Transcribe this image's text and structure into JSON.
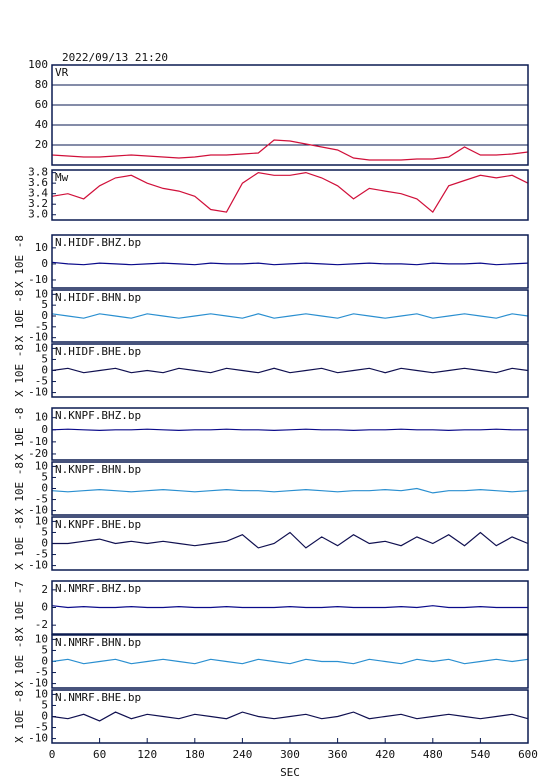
{
  "chart_data": [
    {
      "type": "line",
      "title": "2022/09/13 21:20",
      "name": "VR",
      "color": "#d0103a",
      "grid": true,
      "xlim": [
        0,
        600
      ],
      "ylim": [
        0,
        100
      ],
      "yticks": [
        20,
        40,
        60,
        80,
        100
      ],
      "x": [
        0,
        20,
        40,
        60,
        80,
        100,
        120,
        140,
        160,
        180,
        200,
        220,
        240,
        260,
        280,
        300,
        320,
        340,
        360,
        380,
        400,
        420,
        440,
        460,
        480,
        500,
        520,
        540,
        560,
        580,
        600
      ],
      "values": [
        10,
        9,
        8,
        8,
        9,
        10,
        9,
        8,
        7,
        8,
        10,
        10,
        11,
        12,
        25,
        24,
        21,
        18,
        15,
        7,
        5,
        5,
        5,
        6,
        6,
        8,
        18,
        10,
        10,
        11,
        13
      ]
    },
    {
      "type": "line",
      "name": "Mw",
      "color": "#d0103a",
      "grid": false,
      "xlim": [
        0,
        600
      ],
      "ylim": [
        2.9,
        3.85
      ],
      "yticks": [
        {
          "value": 3,
          "label": "3.0"
        },
        3.2,
        3.4,
        3.6,
        3.8
      ],
      "x": [
        0,
        20,
        40,
        60,
        80,
        100,
        120,
        140,
        160,
        180,
        200,
        220,
        240,
        260,
        280,
        300,
        320,
        340,
        360,
        380,
        400,
        420,
        440,
        460,
        480,
        500,
        520,
        540,
        560,
        580,
        600
      ],
      "values": [
        3.35,
        3.4,
        3.3,
        3.55,
        3.7,
        3.75,
        3.6,
        3.5,
        3.45,
        3.35,
        3.1,
        3.05,
        3.6,
        3.8,
        3.75,
        3.75,
        3.8,
        3.7,
        3.55,
        3.3,
        3.5,
        3.45,
        3.4,
        3.3,
        3.05,
        3.55,
        3.65,
        3.75,
        3.7,
        3.75,
        3.6
      ]
    },
    {
      "type": "line",
      "name": "N.HIDF.BHZ.bp",
      "ylabel": "X 10E -8",
      "color": "#0a0a8a",
      "grid": false,
      "xlim": [
        0,
        600
      ],
      "ylim": [
        -15,
        18
      ],
      "yticks": [
        -10,
        0,
        10
      ],
      "x": [
        0,
        20,
        40,
        60,
        80,
        100,
        120,
        140,
        160,
        180,
        200,
        220,
        240,
        260,
        280,
        300,
        320,
        340,
        360,
        380,
        400,
        420,
        440,
        460,
        480,
        500,
        520,
        540,
        560,
        580,
        600
      ],
      "values": [
        1,
        0,
        -0.5,
        0.5,
        0,
        -0.5,
        0,
        0.5,
        0,
        -0.5,
        0.5,
        0,
        0,
        0.5,
        -0.5,
        0,
        0.5,
        0,
        -0.5,
        0,
        0.5,
        0,
        0,
        -0.5,
        0.5,
        0,
        0,
        0.5,
        -0.5,
        0,
        0.5
      ]
    },
    {
      "type": "line",
      "name": "N.HIDF.BHN.bp",
      "ylabel": "X 10E -8",
      "color": "#2a8fd0",
      "grid": false,
      "xlim": [
        0,
        600
      ],
      "ylim": [
        -12,
        12
      ],
      "yticks": [
        -10,
        -5,
        0,
        5,
        10
      ],
      "x": [
        0,
        20,
        40,
        60,
        80,
        100,
        120,
        140,
        160,
        180,
        200,
        220,
        240,
        260,
        280,
        300,
        320,
        340,
        360,
        380,
        400,
        420,
        440,
        460,
        480,
        500,
        520,
        540,
        560,
        580,
        600
      ],
      "values": [
        1,
        0,
        -1,
        1,
        0,
        -1,
        1,
        0,
        -1,
        0,
        1,
        0,
        -1,
        1,
        -1,
        0,
        1,
        0,
        -1,
        1,
        0,
        -1,
        0,
        1,
        -1,
        0,
        1,
        0,
        -1,
        1,
        0
      ]
    },
    {
      "type": "line",
      "name": "N.HIDF.BHE.bp",
      "ylabel": "X 10E -8",
      "color": "#101050",
      "grid": false,
      "xlim": [
        0,
        600
      ],
      "ylim": [
        -12,
        12
      ],
      "yticks": [
        -10,
        -5,
        0,
        5,
        10
      ],
      "x": [
        0,
        20,
        40,
        60,
        80,
        100,
        120,
        140,
        160,
        180,
        200,
        220,
        240,
        260,
        280,
        300,
        320,
        340,
        360,
        380,
        400,
        420,
        440,
        460,
        480,
        500,
        520,
        540,
        560,
        580,
        600
      ],
      "values": [
        0,
        1,
        -1,
        0,
        1,
        -1,
        0,
        -1,
        1,
        0,
        -1,
        1,
        0,
        -1,
        1,
        -1,
        0,
        1,
        -1,
        0,
        1,
        -1,
        1,
        0,
        -1,
        0,
        1,
        0,
        -1,
        1,
        0
      ]
    },
    {
      "type": "line",
      "name": "N.KNPF.BHZ.bp",
      "ylabel": "X 10E -8",
      "color": "#0a0a8a",
      "grid": false,
      "xlim": [
        0,
        600
      ],
      "ylim": [
        -25,
        18
      ],
      "yticks": [
        -20,
        -10,
        0,
        10
      ],
      "x": [
        0,
        20,
        40,
        60,
        80,
        100,
        120,
        140,
        160,
        180,
        200,
        220,
        240,
        260,
        280,
        300,
        320,
        340,
        360,
        380,
        400,
        420,
        440,
        460,
        480,
        500,
        520,
        540,
        560,
        580,
        600
      ],
      "values": [
        0,
        0.5,
        0,
        -0.5,
        0,
        0,
        0.5,
        0,
        -0.5,
        0,
        0,
        0.5,
        0,
        0,
        -0.5,
        0,
        0.5,
        0,
        0,
        -0.5,
        0,
        0,
        0.5,
        0,
        0,
        -0.5,
        0,
        0,
        0.5,
        0,
        0
      ]
    },
    {
      "type": "line",
      "name": "N.KNPF.BHN.bp",
      "ylabel": "X 10E -8",
      "color": "#2a8fd0",
      "grid": false,
      "xlim": [
        0,
        600
      ],
      "ylim": [
        -12,
        12
      ],
      "yticks": [
        -10,
        -5,
        0,
        5,
        10
      ],
      "x": [
        0,
        20,
        40,
        60,
        80,
        100,
        120,
        140,
        160,
        180,
        200,
        220,
        240,
        260,
        280,
        300,
        320,
        340,
        360,
        380,
        400,
        420,
        440,
        460,
        480,
        500,
        520,
        540,
        560,
        580,
        600
      ],
      "values": [
        -1,
        -1.5,
        -1,
        -0.5,
        -1,
        -1.5,
        -1,
        -0.5,
        -1,
        -1.5,
        -1,
        -0.5,
        -1,
        -1,
        -1.5,
        -1,
        -0.5,
        -1,
        -1.5,
        -1,
        -1,
        -0.5,
        -1,
        0,
        -2,
        -1,
        -1,
        -0.5,
        -1,
        -1.5,
        -1
      ]
    },
    {
      "type": "line",
      "name": "N.KNPF.BHE.bp",
      "ylabel": "X 10E -8",
      "color": "#101050",
      "grid": false,
      "xlim": [
        0,
        600
      ],
      "ylim": [
        -12,
        12
      ],
      "yticks": [
        -10,
        -5,
        0,
        5,
        10
      ],
      "x": [
        0,
        20,
        40,
        60,
        80,
        100,
        120,
        140,
        160,
        180,
        200,
        220,
        240,
        260,
        280,
        300,
        320,
        340,
        360,
        380,
        400,
        420,
        440,
        460,
        480,
        500,
        520,
        540,
        560,
        580,
        600
      ],
      "values": [
        0,
        0,
        1,
        2,
        0,
        1,
        0,
        1,
        0,
        -1,
        0,
        1,
        4,
        -2,
        0,
        5,
        -2,
        3,
        -1,
        4,
        0,
        1,
        -1,
        3,
        0,
        4,
        -1,
        5,
        -1,
        3,
        0
      ]
    },
    {
      "type": "line",
      "name": "N.NMRF.BHZ.bp",
      "ylabel": "X 10E -7",
      "color": "#0a0a8a",
      "grid": false,
      "xlim": [
        0,
        600
      ],
      "ylim": [
        -3,
        3
      ],
      "yticks": [
        -2,
        0,
        2
      ],
      "x": [
        0,
        20,
        40,
        60,
        80,
        100,
        120,
        140,
        160,
        180,
        200,
        220,
        240,
        260,
        280,
        300,
        320,
        340,
        360,
        380,
        400,
        420,
        440,
        460,
        480,
        500,
        520,
        540,
        560,
        580,
        600
      ],
      "values": [
        0.2,
        0,
        0.1,
        0,
        0,
        0.1,
        0,
        0,
        0.1,
        0,
        0,
        0.1,
        0,
        0,
        0,
        0.1,
        0,
        0,
        0.1,
        0,
        0,
        0,
        0.1,
        0,
        0.2,
        0,
        0,
        0.1,
        0,
        0,
        0
      ]
    },
    {
      "type": "line",
      "name": "N.NMRF.BHN.bp",
      "ylabel": "X 10E -8",
      "color": "#2a8fd0",
      "grid": false,
      "xlim": [
        0,
        600
      ],
      "ylim": [
        -12,
        12
      ],
      "yticks": [
        -10,
        -5,
        0,
        5,
        10
      ],
      "x": [
        0,
        20,
        40,
        60,
        80,
        100,
        120,
        140,
        160,
        180,
        200,
        220,
        240,
        260,
        280,
        300,
        320,
        340,
        360,
        380,
        400,
        420,
        440,
        460,
        480,
        500,
        520,
        540,
        560,
        580,
        600
      ],
      "values": [
        0,
        1,
        -1,
        0,
        1,
        -1,
        0,
        1,
        0,
        -1,
        1,
        0,
        -1,
        1,
        0,
        -1,
        1,
        0,
        0,
        -1,
        1,
        0,
        -1,
        1,
        0,
        1,
        -1,
        0,
        1,
        0,
        1
      ]
    },
    {
      "type": "line",
      "name": "N.NMRF.BHE.bp",
      "ylabel": "X 10E -8",
      "color": "#101050",
      "grid": false,
      "xlim": [
        0,
        600
      ],
      "ylim": [
        -12,
        12
      ],
      "yticks": [
        -10,
        -5,
        0,
        5,
        10
      ],
      "xlabel": "SEC",
      "xticks": [
        0,
        60,
        120,
        180,
        240,
        300,
        360,
        420,
        480,
        540,
        600
      ],
      "x": [
        0,
        20,
        40,
        60,
        80,
        100,
        120,
        140,
        160,
        180,
        200,
        220,
        240,
        260,
        280,
        300,
        320,
        340,
        360,
        380,
        400,
        420,
        440,
        460,
        480,
        500,
        520,
        540,
        560,
        580,
        600
      ],
      "values": [
        0,
        -1,
        1,
        -2,
        2,
        -1,
        1,
        0,
        -1,
        1,
        0,
        -1,
        2,
        0,
        -1,
        0,
        1,
        -1,
        0,
        2,
        -1,
        0,
        1,
        -1,
        0,
        1,
        0,
        -1,
        0,
        1,
        -1
      ]
    }
  ]
}
